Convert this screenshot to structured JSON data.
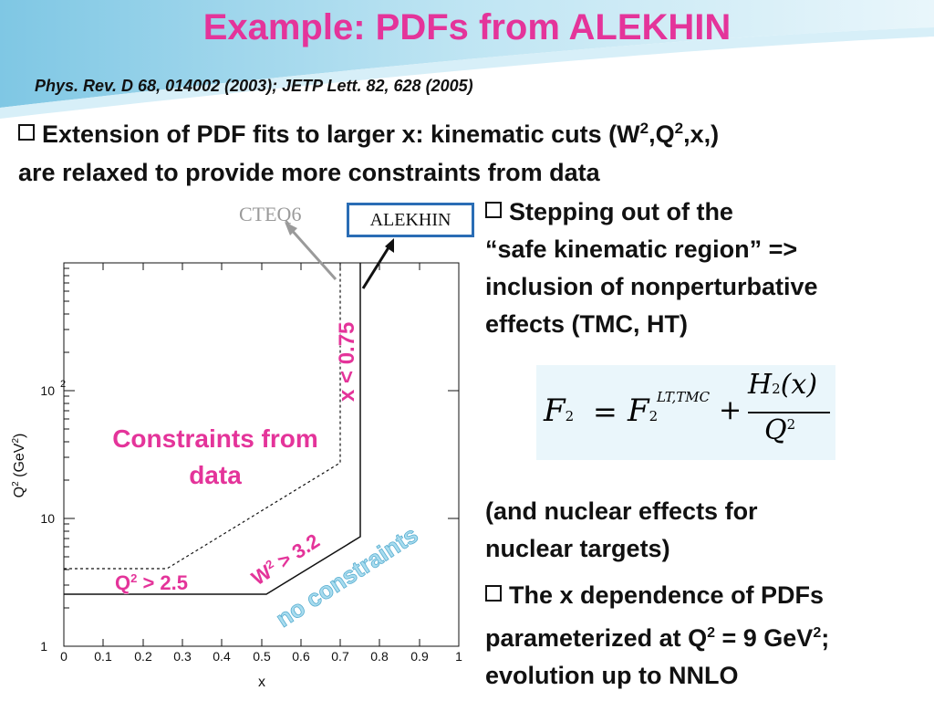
{
  "title": "Example: PDFs from ALEKHIN",
  "reference": "Phys. Rev. D 68, 014002 (2003); JETP Lett. 82, 628 (2005)",
  "main_bullet": {
    "part1": "Extension of PDF fits to larger x: kinematic cuts (W",
    "sup1": "2",
    "part2": ",Q",
    "sup2": "2",
    "part3": ",x,)",
    "line2": "are relaxed to provide more constraints from data"
  },
  "right_bullets": {
    "b1_line1": "Stepping out of the",
    "b1_line2": "“safe kinematic region” =>",
    "b1_line3": "inclusion of nonperturbative",
    "b1_line4": "effects (TMC, HT)",
    "nuclear_line1": "(and nuclear effects for",
    "nuclear_line2": "nuclear targets)",
    "b2_line1": "The x dependence of PDFs",
    "b2_line2a": "parameterized at Q",
    "b2_sup": "2",
    "b2_line2b": " = 9 GeV",
    "b2_sup2": "2",
    "b2_line2c": ";",
    "b2_line3": "evolution up to NNLO"
  },
  "formula": {
    "F": "F",
    "sub2": "2",
    "eq": "=",
    "F2": "F",
    "sub2b": "2",
    "sup_lt": "LT,TMC",
    "plus": "+",
    "num": "H",
    "num_sub": "2",
    "num_arg": "(x)",
    "den": "Q",
    "den_sup": "2"
  },
  "plot": {
    "cteq_label": "CTEQ6",
    "alekhin_label": "ALEKHIN",
    "constraints_line1": "Constraints from",
    "constraints_line2": "data",
    "x_cut": "x < 0.75",
    "w_cut": "W",
    "w_cut_sup": "2",
    "w_cut_val": " > 3.2",
    "q_cut": "Q",
    "q_cut_sup": "2",
    "q_cut_val": " > 2.5",
    "no_constraints": "no constraints",
    "xlabel": "x",
    "ylabel_a": "Q",
    "ylabel_sup": "2",
    "ylabel_b": " (GeV",
    "ylabel_sup2": "2",
    "ylabel_c": ")",
    "x_ticks": [
      "0",
      "0.1",
      "0.2",
      "0.3",
      "0.4",
      "0.5",
      "0.6",
      "0.7",
      "0.8",
      "0.9",
      "1"
    ],
    "y_tick_1": "1",
    "y_tick_10": "10",
    "y_tick_100": "10",
    "y_tick_100_exp": "2"
  },
  "colors": {
    "title": "#e4349a",
    "alekhin_box": "#2a6db5",
    "cteq_gray": "#9a9a9a",
    "no_constraints": "#a8dcef"
  }
}
